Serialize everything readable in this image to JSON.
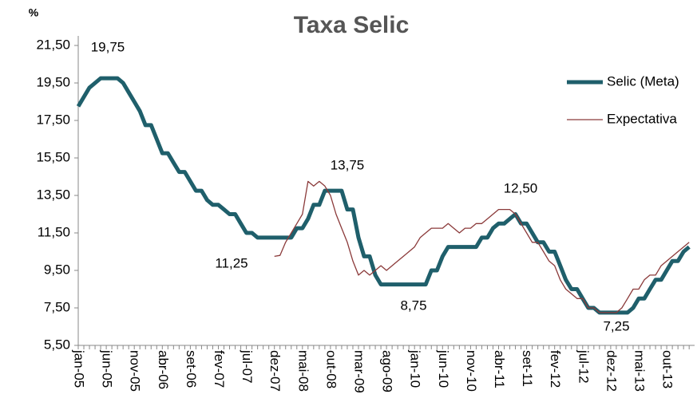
{
  "chart_data": {
    "type": "line",
    "title": "Taxa Selic",
    "y_unit": "%",
    "categories": [
      "jan-05",
      null,
      null,
      null,
      null,
      "jun-05",
      null,
      null,
      null,
      null,
      "nov-05",
      null,
      null,
      null,
      null,
      "abr-06",
      null,
      null,
      null,
      null,
      "set-06",
      null,
      null,
      null,
      null,
      "fev-07",
      null,
      null,
      null,
      null,
      "jul-07",
      null,
      null,
      null,
      null,
      "dez-07",
      null,
      null,
      null,
      null,
      "mai-08",
      null,
      null,
      null,
      null,
      "out-08",
      null,
      null,
      null,
      null,
      "mar-09",
      null,
      null,
      null,
      null,
      "ago-09",
      null,
      null,
      null,
      null,
      "jan-10",
      null,
      null,
      null,
      null,
      "jun-10",
      null,
      null,
      null,
      null,
      "nov-10",
      null,
      null,
      null,
      null,
      "abr-11",
      null,
      null,
      null,
      null,
      "set-11",
      null,
      null,
      null,
      null,
      "fev-12",
      null,
      null,
      null,
      null,
      "jul-12",
      null,
      null,
      null,
      null,
      "dez-12",
      null,
      null,
      null,
      null,
      "mai-13",
      null,
      null,
      null,
      null,
      "out-13",
      null,
      null,
      null,
      null
    ],
    "series": [
      {
        "name": "Selic (Meta)",
        "color": "#1f5f6b",
        "width": 5,
        "values": [
          18.25,
          18.75,
          19.25,
          19.5,
          19.75,
          19.75,
          19.75,
          19.75,
          19.5,
          19.0,
          18.5,
          18.0,
          17.25,
          17.25,
          16.5,
          15.75,
          15.75,
          15.25,
          14.75,
          14.75,
          14.25,
          13.75,
          13.75,
          13.25,
          13.0,
          13.0,
          12.75,
          12.5,
          12.5,
          12.0,
          11.5,
          11.5,
          11.25,
          11.25,
          11.25,
          11.25,
          11.25,
          11.25,
          11.25,
          11.75,
          11.75,
          12.25,
          13.0,
          13.0,
          13.75,
          13.75,
          13.75,
          13.75,
          12.75,
          12.75,
          11.25,
          10.25,
          10.25,
          9.25,
          8.75,
          8.75,
          8.75,
          8.75,
          8.75,
          8.75,
          8.75,
          8.75,
          8.75,
          9.5,
          9.5,
          10.25,
          10.75,
          10.75,
          10.75,
          10.75,
          10.75,
          10.75,
          11.25,
          11.25,
          11.75,
          12.0,
          12.0,
          12.25,
          12.5,
          12.0,
          12.0,
          11.5,
          11.0,
          11.0,
          10.5,
          10.5,
          9.75,
          9.0,
          8.5,
          8.5,
          8.0,
          7.5,
          7.5,
          7.25,
          7.25,
          7.25,
          7.25,
          7.25,
          7.25,
          7.5,
          8.0,
          8.0,
          8.5,
          9.0,
          9.0,
          9.5,
          10.0,
          10.0,
          10.5,
          10.75
        ]
      },
      {
        "name": "Expectativa",
        "color": "#8b3a3a",
        "width": 1.3,
        "values": [
          null,
          null,
          null,
          null,
          null,
          null,
          null,
          null,
          null,
          null,
          null,
          null,
          null,
          null,
          null,
          null,
          null,
          null,
          null,
          null,
          null,
          null,
          null,
          null,
          null,
          null,
          null,
          null,
          null,
          null,
          null,
          null,
          null,
          null,
          null,
          10.25,
          10.3,
          11.0,
          11.5,
          12.0,
          12.5,
          14.25,
          14.0,
          14.25,
          14.0,
          13.5,
          12.5,
          11.75,
          11.0,
          10.0,
          9.25,
          9.5,
          9.25,
          9.5,
          9.75,
          9.5,
          9.75,
          10.0,
          10.25,
          10.5,
          10.75,
          11.25,
          11.5,
          11.75,
          11.75,
          11.75,
          12.0,
          11.75,
          11.5,
          11.75,
          11.75,
          12.0,
          12.0,
          12.25,
          12.5,
          12.75,
          12.75,
          12.75,
          12.5,
          12.0,
          11.5,
          11.0,
          11.0,
          10.5,
          10.0,
          9.75,
          9.0,
          8.5,
          8.25,
          8.0,
          8.0,
          7.5,
          7.5,
          7.25,
          7.25,
          7.25,
          7.25,
          7.5,
          8.0,
          8.5,
          8.5,
          9.0,
          9.25,
          9.25,
          9.75,
          10.0,
          10.25,
          10.5,
          10.75,
          11.0
        ]
      }
    ],
    "ylim": [
      5.5,
      21.5
    ],
    "yticks": [
      {
        "value": 5.5,
        "label": "5,50"
      },
      {
        "value": 7.5,
        "label": "7,50"
      },
      {
        "value": 9.5,
        "label": "9,50"
      },
      {
        "value": 11.5,
        "label": "11,50"
      },
      {
        "value": 13.5,
        "label": "13,50"
      },
      {
        "value": 15.5,
        "label": "15,50"
      },
      {
        "value": 17.5,
        "label": "17,50"
      },
      {
        "value": 19.5,
        "label": "19,50"
      },
      {
        "value": 21.5,
        "label": "21,50"
      }
    ],
    "annotations": [
      "19,75",
      "13,75",
      "11,25",
      "8,75",
      "12,50",
      "7,25"
    ],
    "legend": "upper right"
  }
}
